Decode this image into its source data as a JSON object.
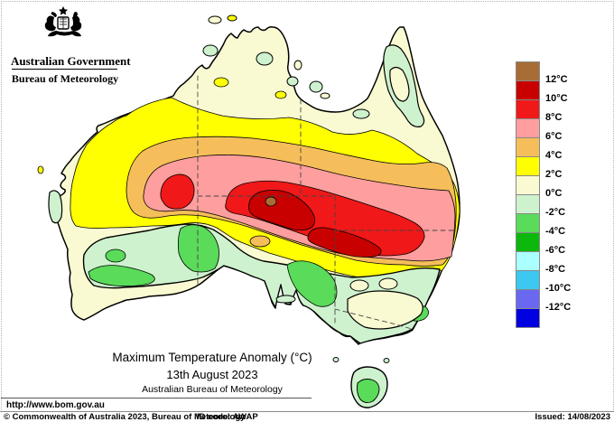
{
  "header": {
    "government": "Australian Government",
    "bureau": "Bureau of Meteorology"
  },
  "title": {
    "line1": "Maximum Temperature Anomaly (°C)",
    "line2": "13th August 2023",
    "line3": "Australian Bureau of Meteorology"
  },
  "legend": {
    "boxes": [
      "#A86D35",
      "#C80000",
      "#F01818",
      "#FF9E9E",
      "#F6BE5A",
      "#FFFF00",
      "#FAFAD2",
      "#CEF2CE",
      "#5ADB5A",
      "#0DB80D",
      "#AAFFFF",
      "#3CC8F0",
      "#6A68F0",
      "#0000E0"
    ],
    "labels": [
      "12°C",
      "10°C",
      "8°C",
      "6°C",
      "4°C",
      "2°C",
      "0°C",
      "-2°C",
      "-4°C",
      "-6°C",
      "-8°C",
      "-10°C",
      "-12°C"
    ]
  },
  "map": {
    "colors": {
      "brown": "#A86D35",
      "red_dark": "#C80000",
      "red": "#F01818",
      "pink": "#FF9E9E",
      "orange": "#F6BE5A",
      "yellow": "#FFFF00",
      "cream": "#FAFAD2",
      "green_pale": "#CEF2CE",
      "green_light": "#5ADB5A",
      "green": "#0DB80D"
    },
    "border_color": "#444444",
    "coast_color": "#000000"
  },
  "footer": {
    "url": "http://www.bom.gov.au",
    "copyright": "© Commonwealth of Australia 2023, Bureau of Meteorology",
    "id_code": "ID code: AWAP",
    "issued": "Issued: 14/08/2023"
  }
}
